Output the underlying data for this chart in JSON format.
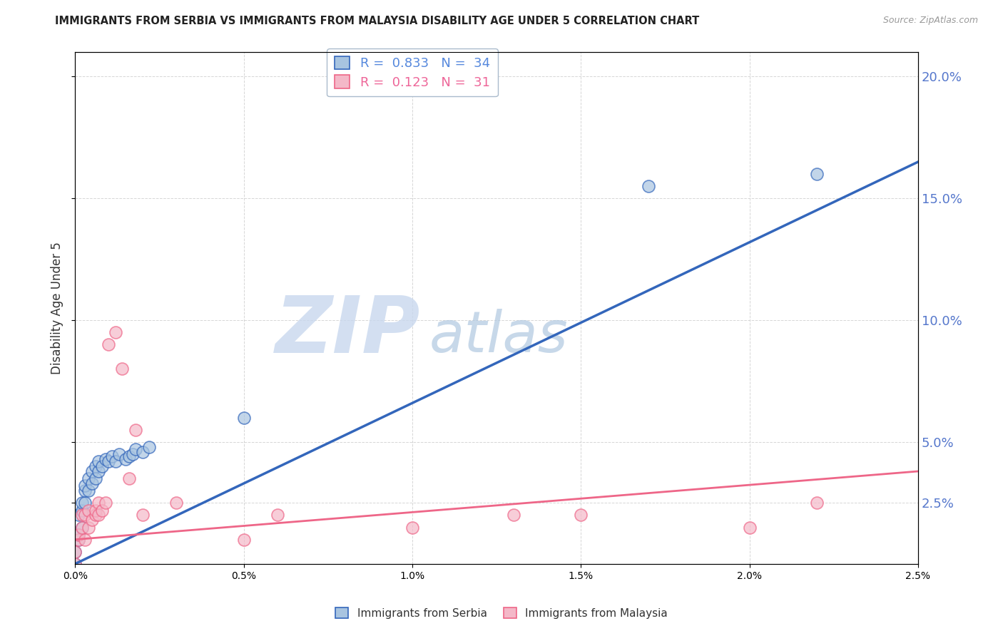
{
  "title": "IMMIGRANTS FROM SERBIA VS IMMIGRANTS FROM MALAYSIA DISABILITY AGE UNDER 5 CORRELATION CHART",
  "source": "Source: ZipAtlas.com",
  "ylabel": "Disability Age Under 5",
  "legend_serbia": "Immigrants from Serbia",
  "legend_malaysia": "Immigrants from Malaysia",
  "R_serbia": 0.833,
  "N_serbia": 34,
  "R_malaysia": 0.123,
  "N_malaysia": 31,
  "color_serbia": "#A8C4E0",
  "color_malaysia": "#F4B8C8",
  "color_serbia_line": "#3366BB",
  "color_malaysia_line": "#EE6688",
  "serbia_x": [
    0.0,
    0.0,
    0.0001,
    0.0001,
    0.0001,
    0.0002,
    0.0002,
    0.0002,
    0.0003,
    0.0003,
    0.0003,
    0.0004,
    0.0004,
    0.0005,
    0.0005,
    0.0006,
    0.0006,
    0.0007,
    0.0007,
    0.0008,
    0.0009,
    0.001,
    0.0011,
    0.0012,
    0.0013,
    0.0015,
    0.0016,
    0.0017,
    0.0018,
    0.002,
    0.0022,
    0.005,
    0.017,
    0.022
  ],
  "serbia_y": [
    0.0,
    0.005,
    0.01,
    0.012,
    0.02,
    0.015,
    0.022,
    0.025,
    0.025,
    0.03,
    0.032,
    0.03,
    0.035,
    0.033,
    0.038,
    0.035,
    0.04,
    0.038,
    0.042,
    0.04,
    0.043,
    0.042,
    0.044,
    0.042,
    0.045,
    0.043,
    0.044,
    0.045,
    0.047,
    0.046,
    0.048,
    0.06,
    0.155,
    0.16
  ],
  "malaysia_x": [
    0.0,
    0.0,
    0.0001,
    0.0001,
    0.0002,
    0.0002,
    0.0003,
    0.0003,
    0.0004,
    0.0004,
    0.0005,
    0.0006,
    0.0006,
    0.0007,
    0.0007,
    0.0008,
    0.0009,
    0.001,
    0.0012,
    0.0014,
    0.0016,
    0.0018,
    0.002,
    0.003,
    0.005,
    0.006,
    0.01,
    0.013,
    0.015,
    0.02,
    0.022
  ],
  "malaysia_y": [
    0.0,
    0.005,
    0.01,
    0.012,
    0.015,
    0.02,
    0.01,
    0.02,
    0.015,
    0.022,
    0.018,
    0.02,
    0.022,
    0.02,
    0.025,
    0.022,
    0.025,
    0.09,
    0.095,
    0.08,
    0.035,
    0.055,
    0.02,
    0.025,
    0.01,
    0.02,
    0.015,
    0.02,
    0.02,
    0.015,
    0.025
  ],
  "xmin": 0.0,
  "xmax": 0.025,
  "ymin": 0.0,
  "ymax": 0.21,
  "yticks": [
    0.025,
    0.05,
    0.1,
    0.15,
    0.2
  ],
  "ytick_labels": [
    "2.5%",
    "5.0%",
    "10.0%",
    "15.0%",
    "20.0%"
  ],
  "xticks": [
    0.0,
    0.005,
    0.01,
    0.015,
    0.02,
    0.025
  ],
  "background_color": "#FFFFFF",
  "grid_color": "#CCCCCC",
  "watermark_zip": "ZIP",
  "watermark_atlas": "atlas",
  "watermark_color_zip": "#C8D8EE",
  "watermark_color_atlas": "#B0C8E0"
}
